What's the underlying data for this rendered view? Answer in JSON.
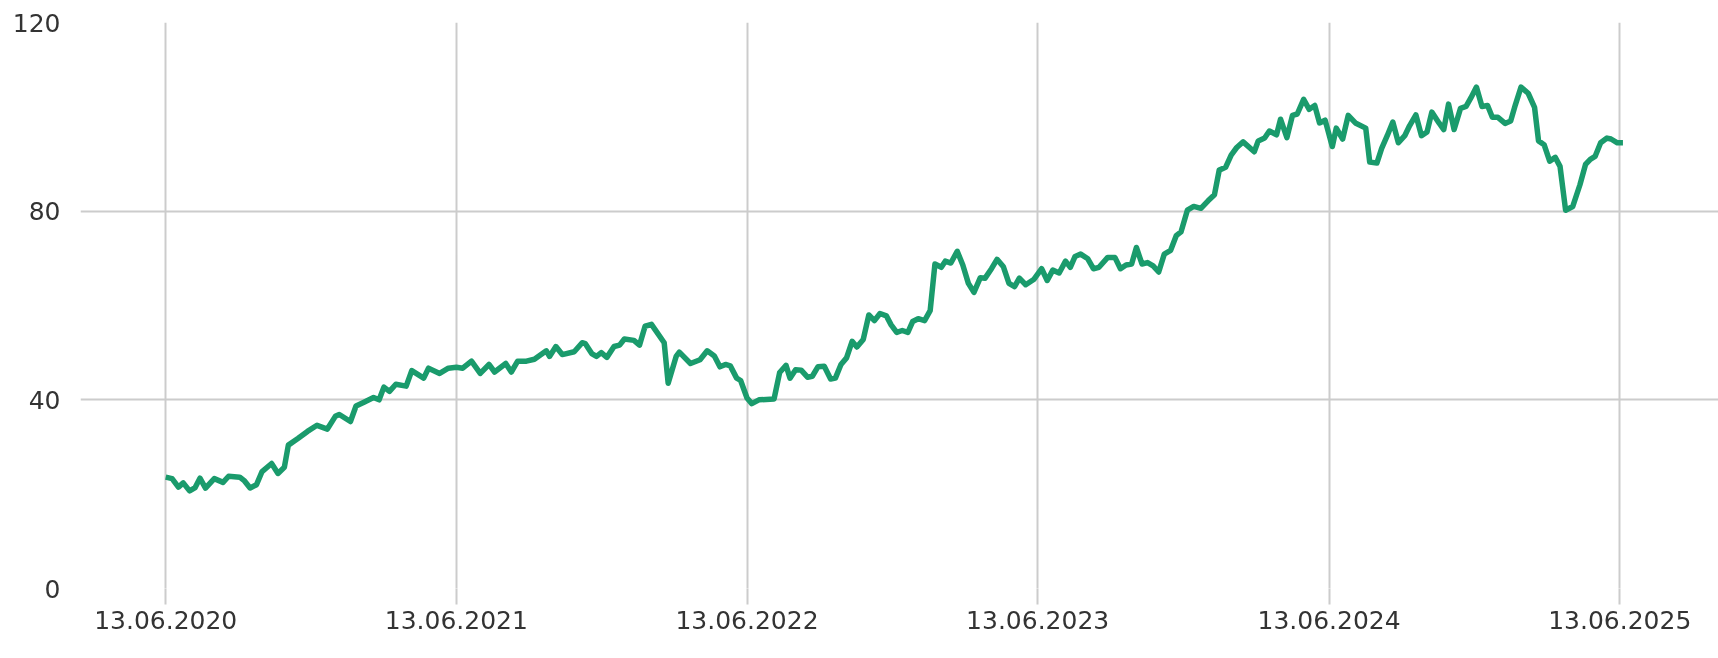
{
  "chart_data": {
    "type": "line",
    "color": "#1a9b6c",
    "grid": true,
    "xlim": [
      "2020-02-27",
      "2025-10-15"
    ],
    "ylim": [
      0,
      120
    ],
    "xticks": [
      {
        "value": "2020-06-13",
        "label": "13.06.2020"
      },
      {
        "value": "2021-06-13",
        "label": "13.06.2021"
      },
      {
        "value": "2022-06-13",
        "label": "13.06.2022"
      },
      {
        "value": "2023-06-13",
        "label": "13.06.2023"
      },
      {
        "value": "2024-06-13",
        "label": "13.06.2024"
      },
      {
        "value": "2025-06-13",
        "label": "13.06.2025"
      }
    ],
    "yticks": [
      0,
      40,
      80,
      120
    ],
    "x": [
      "2020-06-13",
      "2020-06-21",
      "2020-06-29",
      "2020-07-05",
      "2020-07-13",
      "2020-07-20",
      "2020-07-26",
      "2020-08-02",
      "2020-08-13",
      "2020-08-24",
      "2020-08-31",
      "2020-09-14",
      "2020-09-20",
      "2020-09-27",
      "2020-10-05",
      "2020-10-12",
      "2020-10-24",
      "2020-11-01",
      "2020-11-09",
      "2020-11-14",
      "2020-11-26",
      "2020-12-08",
      "2020-12-20",
      "2021-01-02",
      "2021-01-12",
      "2021-01-17",
      "2021-01-31",
      "2021-02-07",
      "2021-02-17",
      "2021-03-01",
      "2021-03-08",
      "2021-03-14",
      "2021-03-21",
      "2021-03-29",
      "2021-04-11",
      "2021-04-18",
      "2021-05-03",
      "2021-05-09",
      "2021-05-23",
      "2021-06-03",
      "2021-06-13",
      "2021-06-21",
      "2021-07-02",
      "2021-07-13",
      "2021-07-24",
      "2021-07-31",
      "2021-08-14",
      "2021-08-21",
      "2021-08-29",
      "2021-09-09",
      "2021-09-19",
      "2021-10-04",
      "2021-10-08",
      "2021-10-16",
      "2021-10-24",
      "2021-11-08",
      "2021-11-18",
      "2021-11-22",
      "2021-11-30",
      "2021-12-06",
      "2021-12-12",
      "2021-12-19",
      "2021-12-28",
      "2022-01-04",
      "2022-01-10",
      "2022-01-22",
      "2022-01-29",
      "2022-02-05",
      "2022-02-13",
      "2022-03-01",
      "2022-03-06",
      "2022-03-16",
      "2022-03-20",
      "2022-04-03",
      "2022-04-15",
      "2022-04-24",
      "2022-05-03",
      "2022-05-10",
      "2022-05-17",
      "2022-05-23",
      "2022-05-31",
      "2022-06-05",
      "2022-06-13",
      "2022-06-19",
      "2022-06-28",
      "2022-07-17",
      "2022-07-24",
      "2022-08-01",
      "2022-08-06",
      "2022-08-13",
      "2022-08-20",
      "2022-08-28",
      "2022-09-03",
      "2022-09-10",
      "2022-09-18",
      "2022-09-26",
      "2022-10-02",
      "2022-10-09",
      "2022-10-16",
      "2022-10-23",
      "2022-10-29",
      "2022-11-06",
      "2022-11-13",
      "2022-11-20",
      "2022-11-27",
      "2022-12-05",
      "2022-12-11",
      "2022-12-18",
      "2022-12-25",
      "2023-01-01",
      "2023-01-07",
      "2023-01-14",
      "2023-01-22",
      "2023-01-29",
      "2023-02-04",
      "2023-02-12",
      "2023-02-17",
      "2023-02-24",
      "2023-03-04",
      "2023-03-11",
      "2023-03-18",
      "2023-03-25",
      "2023-04-02",
      "2023-04-08",
      "2023-04-16",
      "2023-04-23",
      "2023-05-01",
      "2023-05-08",
      "2023-05-15",
      "2023-05-21",
      "2023-05-29",
      "2023-06-08",
      "2023-06-18",
      "2023-06-25",
      "2023-07-02",
      "2023-07-10",
      "2023-07-18",
      "2023-07-24",
      "2023-07-30",
      "2023-08-06",
      "2023-08-15",
      "2023-08-22",
      "2023-08-29",
      "2023-09-09",
      "2023-09-18",
      "2023-09-25",
      "2023-10-02",
      "2023-10-09",
      "2023-10-15",
      "2023-10-22",
      "2023-10-29",
      "2023-11-05",
      "2023-11-12",
      "2023-11-19",
      "2023-11-27",
      "2023-12-04",
      "2023-12-10",
      "2023-12-18",
      "2023-12-26",
      "2024-01-04",
      "2024-01-13",
      "2024-01-21",
      "2024-01-27",
      "2024-02-04",
      "2024-02-11",
      "2024-02-18",
      "2024-02-26",
      "2024-03-11",
      "2024-03-16",
      "2024-03-24",
      "2024-03-30",
      "2024-04-08",
      "2024-04-13",
      "2024-04-21",
      "2024-04-28",
      "2024-05-04",
      "2024-05-12",
      "2024-05-19",
      "2024-05-26",
      "2024-06-01",
      "2024-06-08",
      "2024-06-17",
      "2024-06-22",
      "2024-06-30",
      "2024-07-07",
      "2024-07-16",
      "2024-07-29",
      "2024-08-03",
      "2024-08-12",
      "2024-08-18",
      "2024-08-25",
      "2024-09-01",
      "2024-09-08",
      "2024-09-16",
      "2024-09-22",
      "2024-09-30",
      "2024-10-07",
      "2024-10-14",
      "2024-10-20",
      "2024-10-29",
      "2024-11-04",
      "2024-11-10",
      "2024-11-17",
      "2024-11-25",
      "2024-12-02",
      "2024-12-08",
      "2024-12-15",
      "2024-12-22",
      "2024-12-29",
      "2025-01-04",
      "2025-01-11",
      "2025-01-20",
      "2025-01-27",
      "2025-02-02",
      "2025-02-09",
      "2025-02-18",
      "2025-02-26",
      "2025-03-03",
      "2025-03-10",
      "2025-03-17",
      "2025-03-24",
      "2025-03-30",
      "2025-04-06",
      "2025-04-15",
      "2025-04-24",
      "2025-05-01",
      "2025-05-07",
      "2025-05-13",
      "2025-05-20",
      "2025-05-28",
      "2025-06-02",
      "2025-06-10",
      "2025-06-17"
    ],
    "values": [
      23.6,
      23.3,
      21.5,
      22.4,
      20.7,
      21.4,
      23.4,
      21.3,
      23.3,
      22.5,
      23.8,
      23.6,
      22.8,
      21.3,
      22.0,
      24.8,
      26.5,
      24.4,
      25.7,
      30.4,
      31.8,
      33.3,
      34.6,
      33.8,
      36.5,
      36.9,
      35.4,
      38.7,
      39.5,
      40.5,
      40.0,
      42.7,
      41.8,
      43.3,
      42.9,
      46.2,
      44.6,
      46.7,
      45.6,
      46.7,
      46.9,
      46.7,
      48.2,
      45.6,
      47.5,
      45.9,
      47.7,
      45.9,
      48.2,
      48.2,
      48.6,
      50.4,
      49.2,
      51.3,
      49.6,
      50.2,
      52.1,
      51.9,
      49.8,
      49.2,
      50.0,
      49.0,
      51.3,
      51.6,
      52.9,
      52.6,
      51.6,
      55.6,
      56.0,
      52.1,
      43.5,
      49.2,
      50.1,
      47.7,
      48.5,
      50.4,
      49.3,
      47.0,
      47.5,
      47.2,
      44.6,
      44.1,
      40.4,
      39.2,
      40.0,
      40.2,
      45.8,
      47.3,
      44.6,
      46.4,
      46.3,
      44.8,
      45.0,
      47.0,
      47.1,
      44.4,
      44.6,
      47.5,
      48.9,
      52.4,
      51.2,
      52.8,
      58.0,
      56.8,
      58.3,
      57.8,
      55.9,
      54.3,
      54.7,
      54.3,
      56.6,
      57.2,
      56.8,
      58.9,
      68.8,
      68.1,
      69.4,
      69.0,
      71.5,
      68.6,
      64.7,
      62.8,
      65.9,
      65.8,
      67.8,
      69.8,
      68.2,
      64.7,
      64.0,
      65.8,
      64.4,
      65.5,
      67.8,
      65.3,
      67.5,
      66.9,
      69.4,
      68.1,
      70.4,
      70.9,
      69.9,
      67.8,
      68.1,
      70.2,
      70.2,
      67.8,
      68.6,
      68.8,
      72.3,
      68.8,
      69.1,
      68.4,
      67.1,
      70.9,
      71.7,
      74.8,
      75.6,
      80.2,
      81.0,
      80.6,
      82.2,
      83.5,
      88.7,
      89.3,
      91.9,
      93.5,
      94.7,
      92.6,
      94.9,
      95.5,
      97.0,
      96.2,
      99.5,
      95.6,
      100.3,
      100.6,
      103.7,
      101.6,
      102.4,
      98.7,
      99.3,
      93.7,
      97.6,
      95.3,
      100.3,
      98.7,
      97.6,
      90.4,
      90.2,
      93.3,
      96.0,
      98.9,
      94.5,
      96.0,
      98.1,
      100.4,
      96.0,
      96.8,
      101.0,
      98.7,
      97.3,
      102.7,
      97.3,
      101.8,
      102.2,
      104.0,
      106.3,
      102.2,
      102.4,
      99.9,
      99.9,
      98.6,
      99.1,
      102.6,
      106.3,
      105.0,
      102.0,
      94.9,
      94.1,
      90.6,
      91.4,
      89.5,
      80.2,
      81.0,
      85.6,
      89.9,
      91.0,
      91.6,
      94.5,
      95.5,
      95.3,
      94.5,
      94.5
    ]
  }
}
